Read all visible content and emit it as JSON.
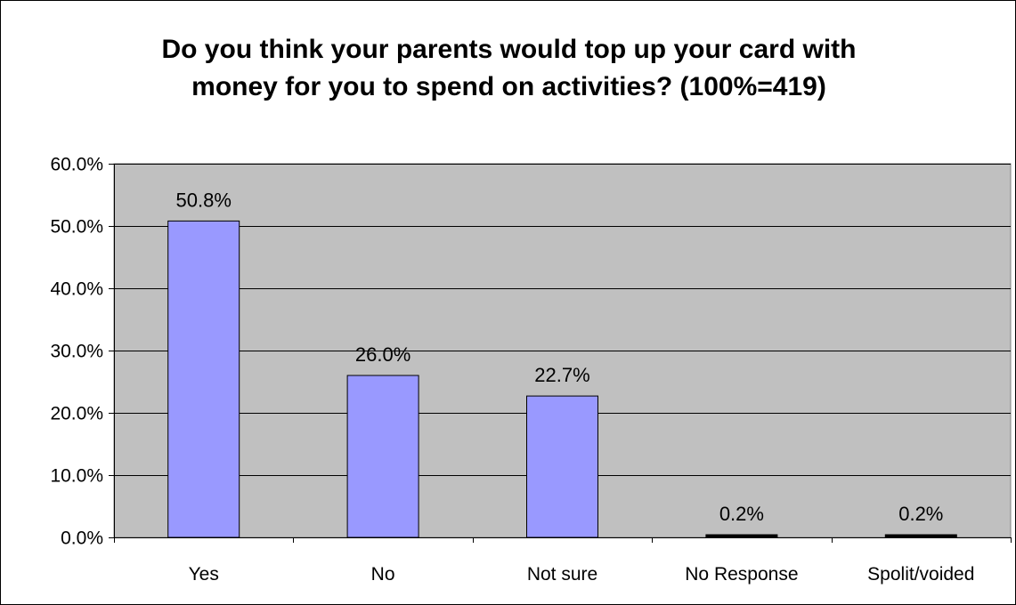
{
  "chart_data": {
    "type": "bar",
    "title_lines": [
      "Do you think your parents would top up your card with",
      "money for you to spend on activities? (100%=419)"
    ],
    "categories": [
      "Yes",
      "No",
      "Not sure",
      "No Response",
      "Spolit/voided"
    ],
    "values": [
      50.8,
      26.0,
      22.7,
      0.2,
      0.2
    ],
    "data_labels": [
      "50.8%",
      "26.0%",
      "22.7%",
      "0.2%",
      "0.2%"
    ],
    "ylim": [
      0,
      60
    ],
    "yticks": [
      0,
      10,
      20,
      30,
      40,
      50,
      60
    ],
    "ytick_labels": [
      "0.0%",
      "10.0%",
      "20.0%",
      "30.0%",
      "40.0%",
      "50.0%",
      "60.0%"
    ],
    "xlabel": "",
    "ylabel": "",
    "grid": true,
    "legend": "none",
    "colors": {
      "bar": "#9999ff",
      "bar_small": "#000000",
      "plot_bg": "#c0c0c0",
      "grid": "#000000"
    }
  }
}
